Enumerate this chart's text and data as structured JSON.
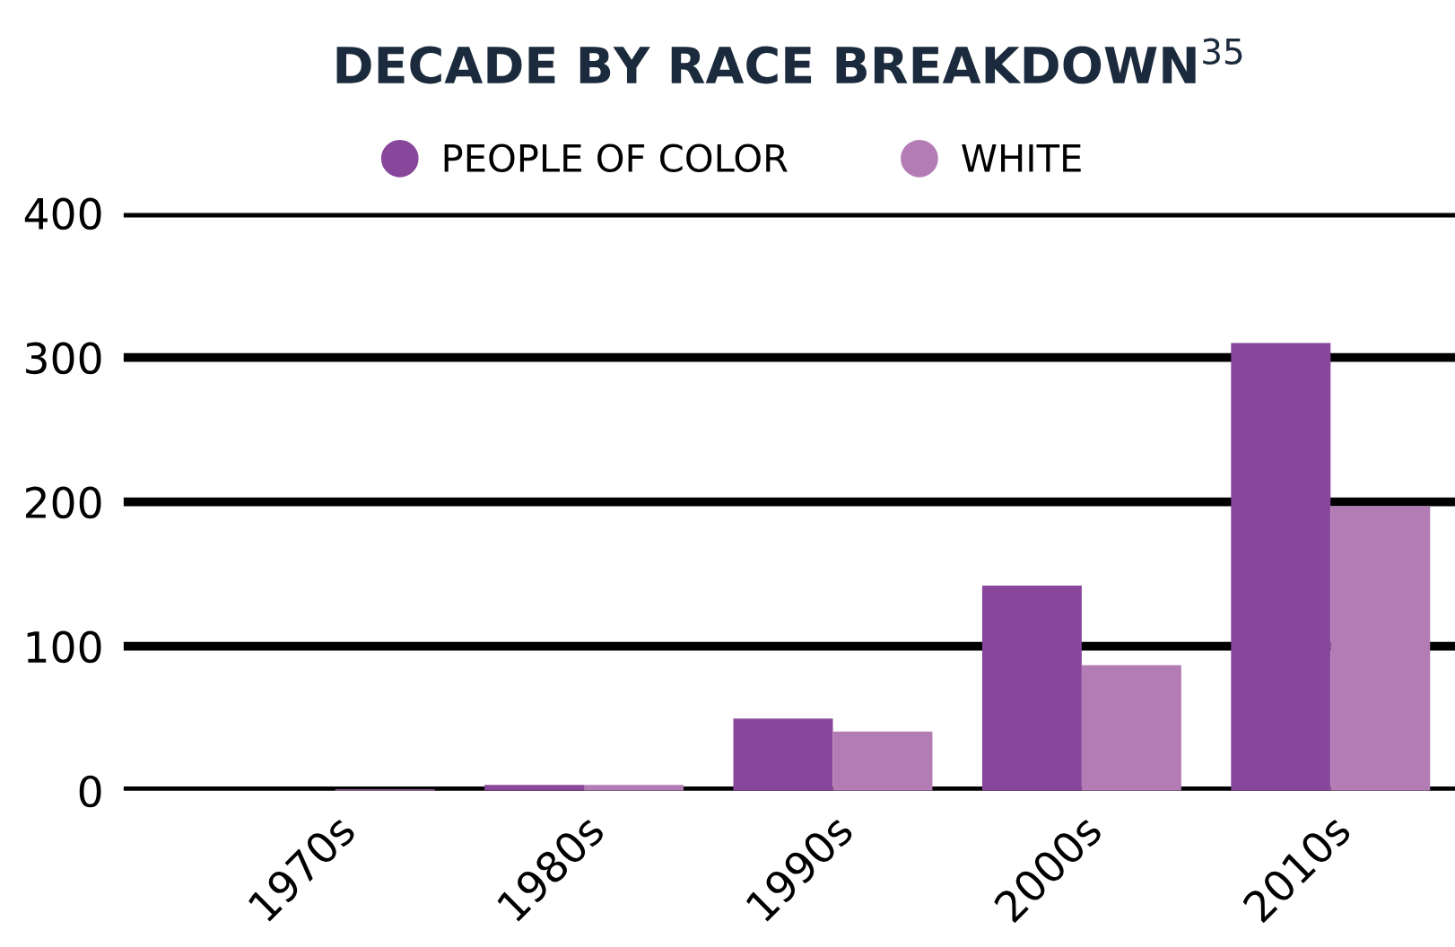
{
  "chart_data": {
    "type": "bar",
    "title": "DECADE BY RACE BREAKDOWN$^{35}$",
    "categories": [
      "1970s",
      "1980s",
      "1990s",
      "2000s",
      "2010s"
    ],
    "series": [
      {
        "name": "PEOPLE OF COLOR",
        "color": "#88479a",
        "values": [
          0,
          4,
          50,
          142,
          310
        ]
      },
      {
        "name": "WHITE",
        "color": "#b47cb4",
        "values": [
          1,
          4,
          41,
          87,
          197
        ]
      }
    ],
    "ylim": [
      0,
      400
    ],
    "yticks": [
      0,
      100,
      200,
      300,
      400
    ],
    "grid": "y",
    "legend": "top"
  }
}
